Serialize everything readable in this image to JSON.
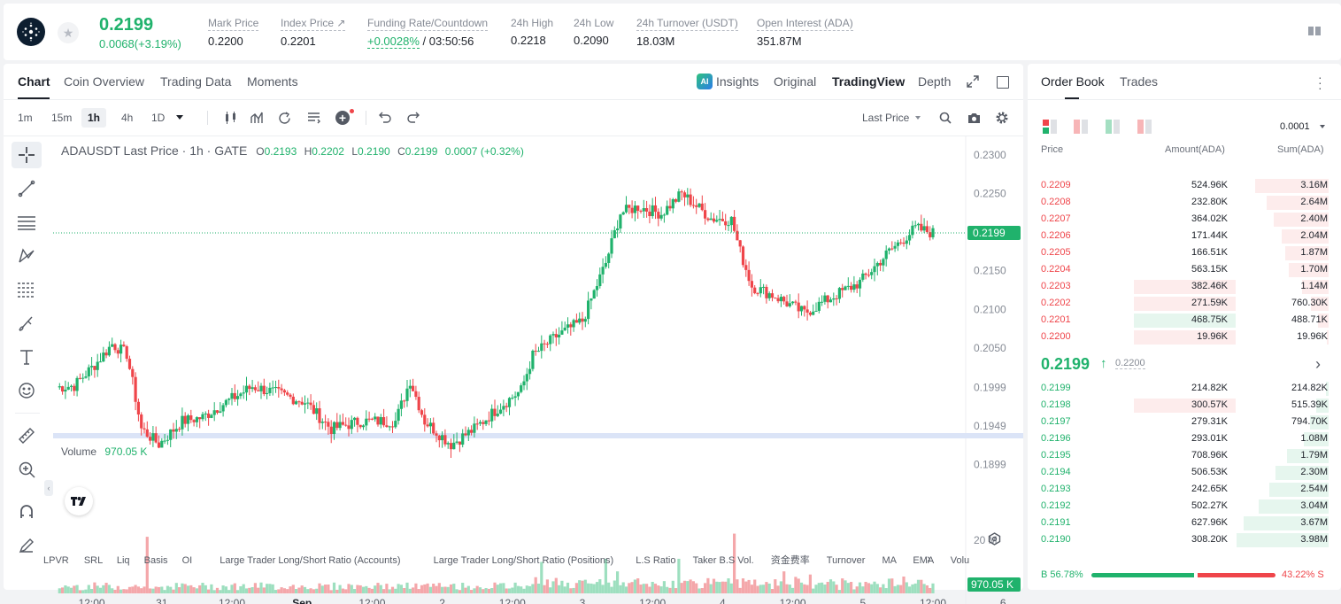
{
  "ticker": {
    "price": "0.2199",
    "change": "0.0068(+3.19%)",
    "metrics": [
      {
        "label": "Mark Price",
        "value": "0.2200"
      },
      {
        "label": "Index Price ↗",
        "value": "0.2201"
      },
      {
        "label": "Funding Rate/Countdown",
        "value_rate": "+0.0028%",
        "value_count": "/ 03:50:56"
      },
      {
        "label": "24h High",
        "value": "0.2218"
      },
      {
        "label": "24h Low",
        "value": "0.2090"
      },
      {
        "label": "24h Turnover (USDT)",
        "value": "18.03M"
      },
      {
        "label": "Open Interest (ADA)",
        "value": "351.87M"
      }
    ]
  },
  "chart_tabs": [
    "Chart",
    "Coin Overview",
    "Trading Data",
    "Moments"
  ],
  "view_tabs": {
    "insights": "Insights",
    "original": "Original",
    "tradingview": "TradingView",
    "depth": "Depth"
  },
  "timeframes": [
    "1m",
    "15m",
    "1h",
    "4h",
    "1D"
  ],
  "price_type": "Last Price",
  "legend": {
    "title": "ADAUSDT Last Price · 1h · GATE",
    "o": "O",
    "ov": "0.2193",
    "h": "H",
    "hv": "0.2202",
    "l": "L",
    "lv": "0.2190",
    "c": "C",
    "cv": "0.2199",
    "chg": "0.0007 (+0.32%)"
  },
  "volume_legend": {
    "label": "Volume",
    "value": "970.05 K"
  },
  "chart_data": {
    "type": "candlestick",
    "title": "ADAUSDT Last Price · 1h · GATE",
    "y_ticks": [
      "0.2300",
      "0.2250",
      "0.2150",
      "0.2100",
      "0.2050",
      "0.1999",
      "0.1949",
      "0.1899"
    ],
    "y_tick_values": [
      0.23,
      0.225,
      0.215,
      0.21,
      0.205,
      0.1999,
      0.1949,
      0.1899
    ],
    "last_price": "0.2199",
    "volume_tick": "20 M",
    "volume_last": "970.05 K",
    "x_ticks": [
      "12:00",
      "31",
      "12:00",
      "Sep",
      "12:00",
      "2",
      "12:00",
      "3",
      "12:00",
      "4",
      "12:00",
      "5",
      "12:00",
      "6"
    ],
    "ylim": [
      0.1865,
      0.2315
    ],
    "anchors": [
      [
        0,
        0.1999
      ],
      [
        6,
        0.2001
      ],
      [
        14,
        0.2032
      ],
      [
        19,
        0.2055
      ],
      [
        24,
        0.2042
      ],
      [
        26,
        0.2005
      ],
      [
        29,
        0.1945
      ],
      [
        35,
        0.1925
      ],
      [
        43,
        0.1955
      ],
      [
        50,
        0.196
      ],
      [
        56,
        0.1975
      ],
      [
        67,
        0.2
      ],
      [
        74,
        0.1993
      ],
      [
        85,
        0.198
      ],
      [
        94,
        0.1945
      ],
      [
        104,
        0.1955
      ],
      [
        116,
        0.1955
      ],
      [
        121,
        0.2008
      ],
      [
        126,
        0.1955
      ],
      [
        135,
        0.1925
      ],
      [
        143,
        0.1945
      ],
      [
        152,
        0.1975
      ],
      [
        159,
        0.1995
      ],
      [
        163,
        0.204
      ],
      [
        171,
        0.2065
      ],
      [
        180,
        0.2085
      ],
      [
        188,
        0.216
      ],
      [
        193,
        0.2225
      ],
      [
        199,
        0.2233
      ],
      [
        207,
        0.2224
      ],
      [
        214,
        0.225
      ],
      [
        224,
        0.2218
      ],
      [
        231,
        0.2216
      ],
      [
        234,
        0.2175
      ],
      [
        238,
        0.213
      ],
      [
        246,
        0.2117
      ],
      [
        256,
        0.2095
      ],
      [
        265,
        0.2115
      ],
      [
        275,
        0.2135
      ],
      [
        285,
        0.2175
      ],
      [
        294,
        0.2205
      ],
      [
        300,
        0.2199
      ]
    ],
    "volume_spikes": [
      [
        31,
        18
      ],
      [
        166,
        10
      ],
      [
        188,
        11
      ],
      [
        192,
        7
      ],
      [
        213,
        11
      ],
      [
        232,
        19
      ],
      [
        249,
        7
      ],
      [
        258,
        6
      ]
    ]
  },
  "bottom_tabs": [
    "LPVR",
    "SRL",
    "Liq",
    "Basis",
    "OI",
    "Large Trader Long/Short Ratio (Accounts)",
    "Large Trader Long/Short Ratio (Positions)",
    "L.S Ratio",
    "Taker B.S Vol.",
    "资金费率",
    "Turnover",
    "MA",
    "EMA",
    "Volu"
  ],
  "orderbook": {
    "tabs": [
      "Order Book",
      "Trades"
    ],
    "precision": "0.0001",
    "headers": {
      "price": "Price",
      "amount": "Amount(ADA)",
      "sum": "Sum(ADA)"
    },
    "asks": [
      {
        "p": "0.2209",
        "a": "524.96K",
        "s": "3.16M",
        "depth": 0.8,
        "amt": 0
      },
      {
        "p": "0.2208",
        "a": "232.80K",
        "s": "2.64M",
        "depth": 0.67,
        "amt": 0
      },
      {
        "p": "0.2207",
        "a": "364.02K",
        "s": "2.40M",
        "depth": 0.6,
        "amt": 0
      },
      {
        "p": "0.2206",
        "a": "171.44K",
        "s": "2.04M",
        "depth": 0.51,
        "amt": 0
      },
      {
        "p": "0.2205",
        "a": "166.51K",
        "s": "1.87M",
        "depth": 0.47,
        "amt": 0
      },
      {
        "p": "0.2204",
        "a": "563.15K",
        "s": "1.70M",
        "depth": 0.43,
        "amt": 0
      },
      {
        "p": "0.2203",
        "a": "382.46K",
        "s": "1.14M",
        "depth": 0.29,
        "amt": 0.36
      },
      {
        "p": "0.2202",
        "a": "271.59K",
        "s": "760.30K",
        "depth": 0.19,
        "amt": 0.36
      },
      {
        "p": "0.2201",
        "a": "468.75K",
        "s": "488.71K",
        "depth": 0.12,
        "amt": 0.36,
        "green": true
      },
      {
        "p": "0.2200",
        "a": "19.96K",
        "s": "19.96K",
        "depth": 0.02,
        "amt": 0.36
      }
    ],
    "mid": {
      "price": "0.2199",
      "arrow": "↑",
      "mark": "0.2200"
    },
    "bids": [
      {
        "p": "0.2199",
        "a": "214.82K",
        "s": "214.82K",
        "depth": 0.03,
        "amt": 0
      },
      {
        "p": "0.2198",
        "a": "300.57K",
        "s": "515.39K",
        "depth": 0.13,
        "amt": 0.36,
        "red": true
      },
      {
        "p": "0.2197",
        "a": "279.31K",
        "s": "794.70K",
        "depth": 0.2,
        "amt": 0
      },
      {
        "p": "0.2196",
        "a": "293.01K",
        "s": "1.08M",
        "depth": 0.27,
        "amt": 0
      },
      {
        "p": "0.2195",
        "a": "708.96K",
        "s": "1.79M",
        "depth": 0.45,
        "amt": 0
      },
      {
        "p": "0.2194",
        "a": "506.53K",
        "s": "2.30M",
        "depth": 0.58,
        "amt": 0
      },
      {
        "p": "0.2193",
        "a": "242.65K",
        "s": "2.54M",
        "depth": 0.64,
        "amt": 0
      },
      {
        "p": "0.2192",
        "a": "502.27K",
        "s": "3.04M",
        "depth": 0.76,
        "amt": 0
      },
      {
        "p": "0.2191",
        "a": "627.96K",
        "s": "3.67M",
        "depth": 0.92,
        "amt": 0
      },
      {
        "p": "0.2190",
        "a": "308.20K",
        "s": "3.98M",
        "depth": 1.0,
        "amt": 0
      }
    ],
    "buy_label": "B",
    "buy_pct": "56.78%",
    "sell_label": "S",
    "sell_pct": "43.22%",
    "buy_ratio": 0.5678
  },
  "colors": {
    "up": "#20b26c",
    "down": "#ef454a"
  }
}
